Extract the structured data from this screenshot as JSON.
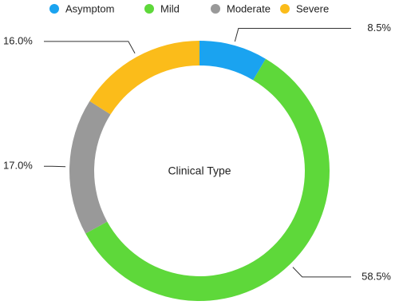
{
  "chart_data": {
    "type": "donut",
    "title": "Clinical Type",
    "categories": [
      "Asymptom",
      "Mild",
      "Moderate",
      "Severe"
    ],
    "values": [
      8.5,
      58.5,
      17.0,
      16.0
    ],
    "value_labels": [
      "8.5%",
      "58.5%",
      "17.0%",
      "16.0%"
    ],
    "colors": [
      "#1aa3f0",
      "#5ed83a",
      "#999999",
      "#fbbc1a"
    ]
  }
}
